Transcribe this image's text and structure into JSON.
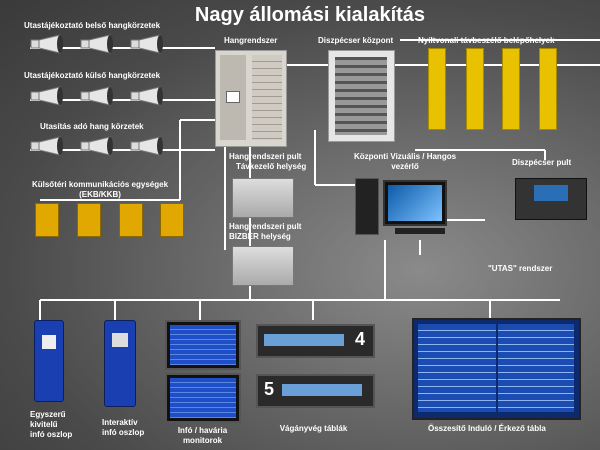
{
  "title": "Nagy állomási kialakítás",
  "labels": {
    "inner_speakers": "Utastájékoztató belső hangkörzetek",
    "outer_speakers": "Utastájékoztató külső hangkörzetek",
    "announce_zone": "Utasítás adó hang körzetek",
    "ekb_line1": "Külsőtéri kommunikációs egységek",
    "ekb_line2": "(EKB/KKB)",
    "pa_system": "Hangrendszer",
    "dispatch_center": "Diszpécser központ",
    "open_line": "Nyíltvonali távbeszélő belépőhelyek",
    "pa_desk_remote_1": "Hangrendszeri pult",
    "pa_desk_remote_2": "Távkezelő helység",
    "pa_desk_local_1": "Hangrendszeri pult",
    "pa_desk_local_2": "BIZBER helység",
    "central_1": "Központi Vizuális / Hangos",
    "central_2": "vezérlő",
    "dispatch_desk": "Diszpécser pult",
    "utas": "\"UTAS\" rendszer",
    "kiosk_simple_1": "Egyszerű",
    "kiosk_simple_2": "kivitelű",
    "kiosk_simple_3": "infó oszlop",
    "kiosk_inter_1": "Interaktív",
    "kiosk_inter_2": "infó oszlop",
    "monitors_1": "Infó / havária",
    "monitors_2": "monitorok",
    "track_boards": "Vágányvég táblák",
    "summary_board": "Összesítő Induló / Érkező tábla"
  },
  "track_numbers": {
    "first": "4",
    "second": "5"
  },
  "colors": {
    "wire": "#ffffff",
    "yellow": "#e8c200",
    "blue": "#1a3fb0"
  }
}
